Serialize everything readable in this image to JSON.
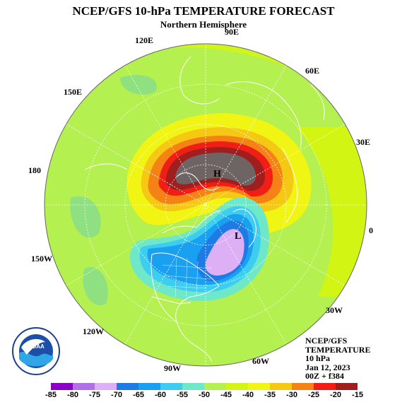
{
  "title": "NCEP/GFS 10-hPa TEMPERATURE FORECAST",
  "subtitle": "Northern Hemisphere",
  "longitude_labels": [
    "90E",
    "60E",
    "30E",
    "0",
    "30W",
    "60W",
    "90W",
    "120W",
    "150W",
    "180",
    "150E",
    "120E"
  ],
  "pressure_labels": {
    "high": "H",
    "low": "L"
  },
  "info_lines": [
    "NCEP/GFS",
    "TEMPERATURE",
    "10 hPa",
    "Jan 12, 2023",
    "00Z + f384"
  ],
  "logo": {
    "text": "NOAA",
    "ring_text": "NATIONAL OCEANIC AND ATMOSPHERIC ADMINISTRATION · U.S. DEPARTMENT OF COMMERCE"
  },
  "colorbar": {
    "labels": [
      "-85",
      "-80",
      "-75",
      "-70",
      "-65",
      "-60",
      "-55",
      "-50",
      "-45",
      "-40",
      "-35",
      "-30",
      "-25",
      "-20",
      "-15"
    ],
    "colors": [
      "#8a00c8",
      "#b070e6",
      "#ddb0f5",
      "#1e7be6",
      "#19a0f0",
      "#3ccdf0",
      "#6ee8c8",
      "#b4f050",
      "#d2f514",
      "#f0f514",
      "#f5c814",
      "#f58214",
      "#f01e14",
      "#a01e1e"
    ]
  },
  "colors": {
    "background_field": "#b4f050",
    "warm_core": "#6e6464",
    "cold_core": "#ddb0f5"
  }
}
